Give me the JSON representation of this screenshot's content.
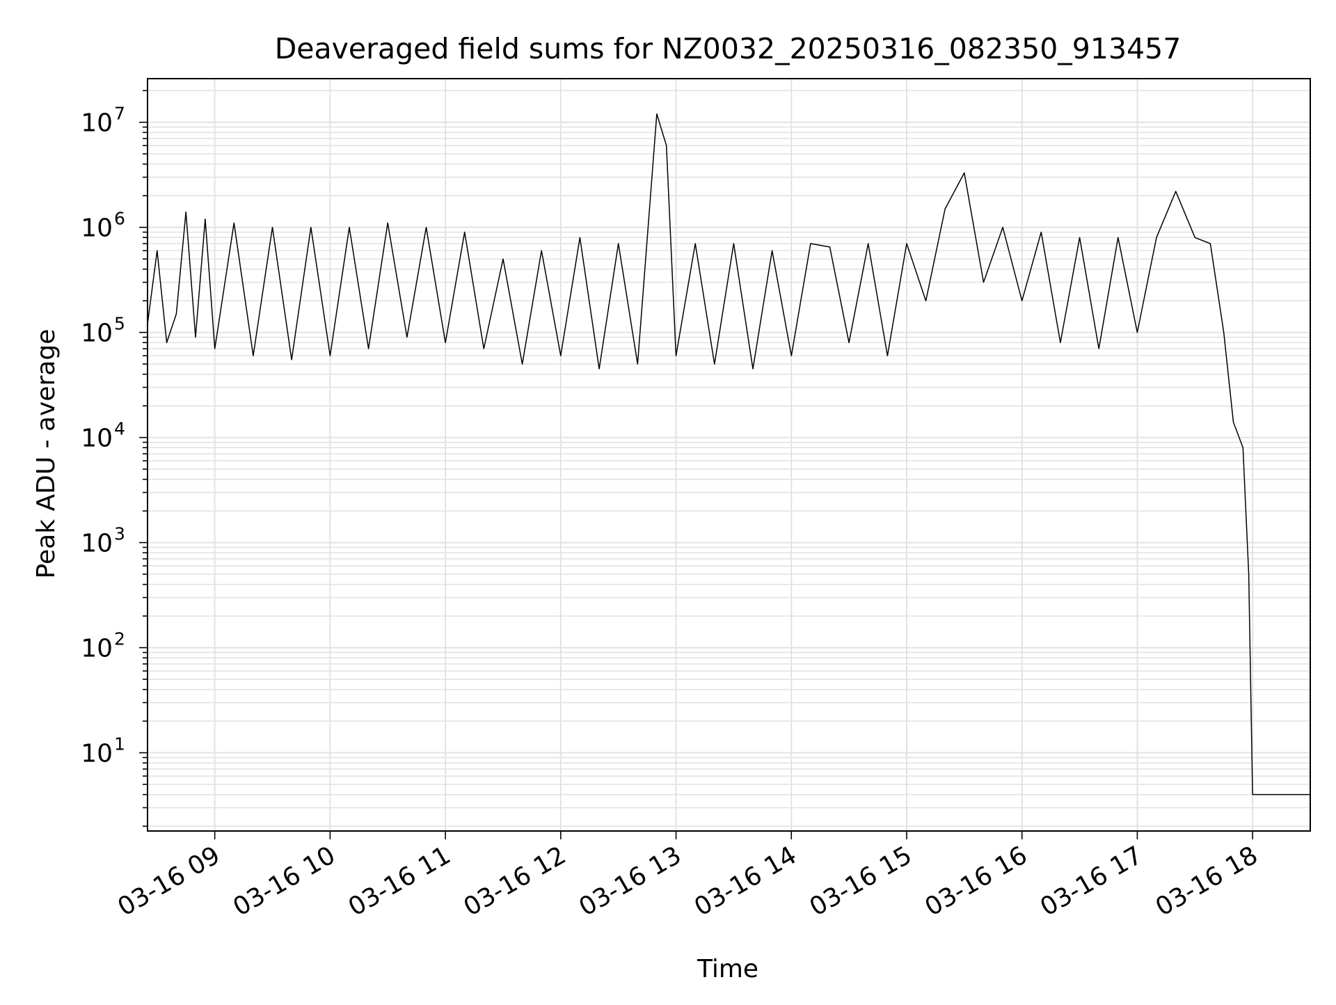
{
  "chart_data": {
    "type": "line",
    "title": "Deaveraged field sums for NZ0032_20250316_082350_913457",
    "xlabel": "Time",
    "ylabel": "Peak ADU - average",
    "yscale": "log",
    "ylim": [
      1.8,
      26000000
    ],
    "xlim": [
      "2025-03-16 08:25",
      "2025-03-16 18:30"
    ],
    "grid": true,
    "grid_minor": true,
    "line_color": "#000000",
    "x_ticks": [
      "03-16 09",
      "03-16 10",
      "03-16 11",
      "03-16 12",
      "03-16 13",
      "03-16 14",
      "03-16 15",
      "03-16 16",
      "03-16 17",
      "03-16 18"
    ],
    "y_ticks": [
      {
        "base": "10",
        "exp": "1"
      },
      {
        "base": "10",
        "exp": "2"
      },
      {
        "base": "10",
        "exp": "3"
      },
      {
        "base": "10",
        "exp": "4"
      },
      {
        "base": "10",
        "exp": "5"
      },
      {
        "base": "10",
        "exp": "6"
      },
      {
        "base": "10",
        "exp": "7"
      }
    ],
    "series": [
      {
        "values_note_hidden": false,
        "points": [
          [
            "2025-03-16 08:25",
            120000
          ],
          [
            "2025-03-16 08:30",
            600000
          ],
          [
            "2025-03-16 08:35",
            80000
          ],
          [
            "2025-03-16 08:40",
            150000
          ],
          [
            "2025-03-16 08:45",
            1400000
          ],
          [
            "2025-03-16 08:50",
            90000
          ],
          [
            "2025-03-16 08:55",
            1200000
          ],
          [
            "2025-03-16 09:00",
            70000
          ],
          [
            "2025-03-16 09:10",
            1100000
          ],
          [
            "2025-03-16 09:20",
            60000
          ],
          [
            "2025-03-16 09:30",
            1000000
          ],
          [
            "2025-03-16 09:40",
            55000
          ],
          [
            "2025-03-16 09:50",
            1000000
          ],
          [
            "2025-03-16 10:00",
            60000
          ],
          [
            "2025-03-16 10:10",
            1000000
          ],
          [
            "2025-03-16 10:20",
            70000
          ],
          [
            "2025-03-16 10:30",
            1100000
          ],
          [
            "2025-03-16 10:40",
            90000
          ],
          [
            "2025-03-16 10:50",
            1000000
          ],
          [
            "2025-03-16 11:00",
            80000
          ],
          [
            "2025-03-16 11:10",
            900000
          ],
          [
            "2025-03-16 11:20",
            70000
          ],
          [
            "2025-03-16 11:30",
            500000
          ],
          [
            "2025-03-16 11:40",
            50000
          ],
          [
            "2025-03-16 11:50",
            600000
          ],
          [
            "2025-03-16 12:00",
            60000
          ],
          [
            "2025-03-16 12:10",
            800000
          ],
          [
            "2025-03-16 12:20",
            45000
          ],
          [
            "2025-03-16 12:30",
            700000
          ],
          [
            "2025-03-16 12:40",
            50000
          ],
          [
            "2025-03-16 12:50",
            12000000
          ],
          [
            "2025-03-16 12:55",
            6000000
          ],
          [
            "2025-03-16 13:00",
            60000
          ],
          [
            "2025-03-16 13:10",
            700000
          ],
          [
            "2025-03-16 13:20",
            50000
          ],
          [
            "2025-03-16 13:30",
            700000
          ],
          [
            "2025-03-16 13:40",
            45000
          ],
          [
            "2025-03-16 13:50",
            600000
          ],
          [
            "2025-03-16 14:00",
            60000
          ],
          [
            "2025-03-16 14:10",
            700000
          ],
          [
            "2025-03-16 14:20",
            650000
          ],
          [
            "2025-03-16 14:30",
            80000
          ],
          [
            "2025-03-16 14:40",
            700000
          ],
          [
            "2025-03-16 14:50",
            60000
          ],
          [
            "2025-03-16 15:00",
            700000
          ],
          [
            "2025-03-16 15:10",
            200000
          ],
          [
            "2025-03-16 15:20",
            1500000
          ],
          [
            "2025-03-16 15:30",
            3300000
          ],
          [
            "2025-03-16 15:40",
            300000
          ],
          [
            "2025-03-16 15:50",
            1000000
          ],
          [
            "2025-03-16 16:00",
            200000
          ],
          [
            "2025-03-16 16:10",
            900000
          ],
          [
            "2025-03-16 16:20",
            80000
          ],
          [
            "2025-03-16 16:30",
            800000
          ],
          [
            "2025-03-16 16:40",
            70000
          ],
          [
            "2025-03-16 16:50",
            800000
          ],
          [
            "2025-03-16 17:00",
            100000
          ],
          [
            "2025-03-16 17:10",
            800000
          ],
          [
            "2025-03-16 17:20",
            2200000
          ],
          [
            "2025-03-16 17:30",
            800000
          ],
          [
            "2025-03-16 17:38",
            700000
          ],
          [
            "2025-03-16 17:45",
            100000
          ],
          [
            "2025-03-16 17:50",
            14000
          ],
          [
            "2025-03-16 17:55",
            8000
          ],
          [
            "2025-03-16 17:58",
            500
          ],
          [
            "2025-03-16 18:00",
            4
          ],
          [
            "2025-03-16 18:30",
            4
          ]
        ]
      }
    ]
  }
}
